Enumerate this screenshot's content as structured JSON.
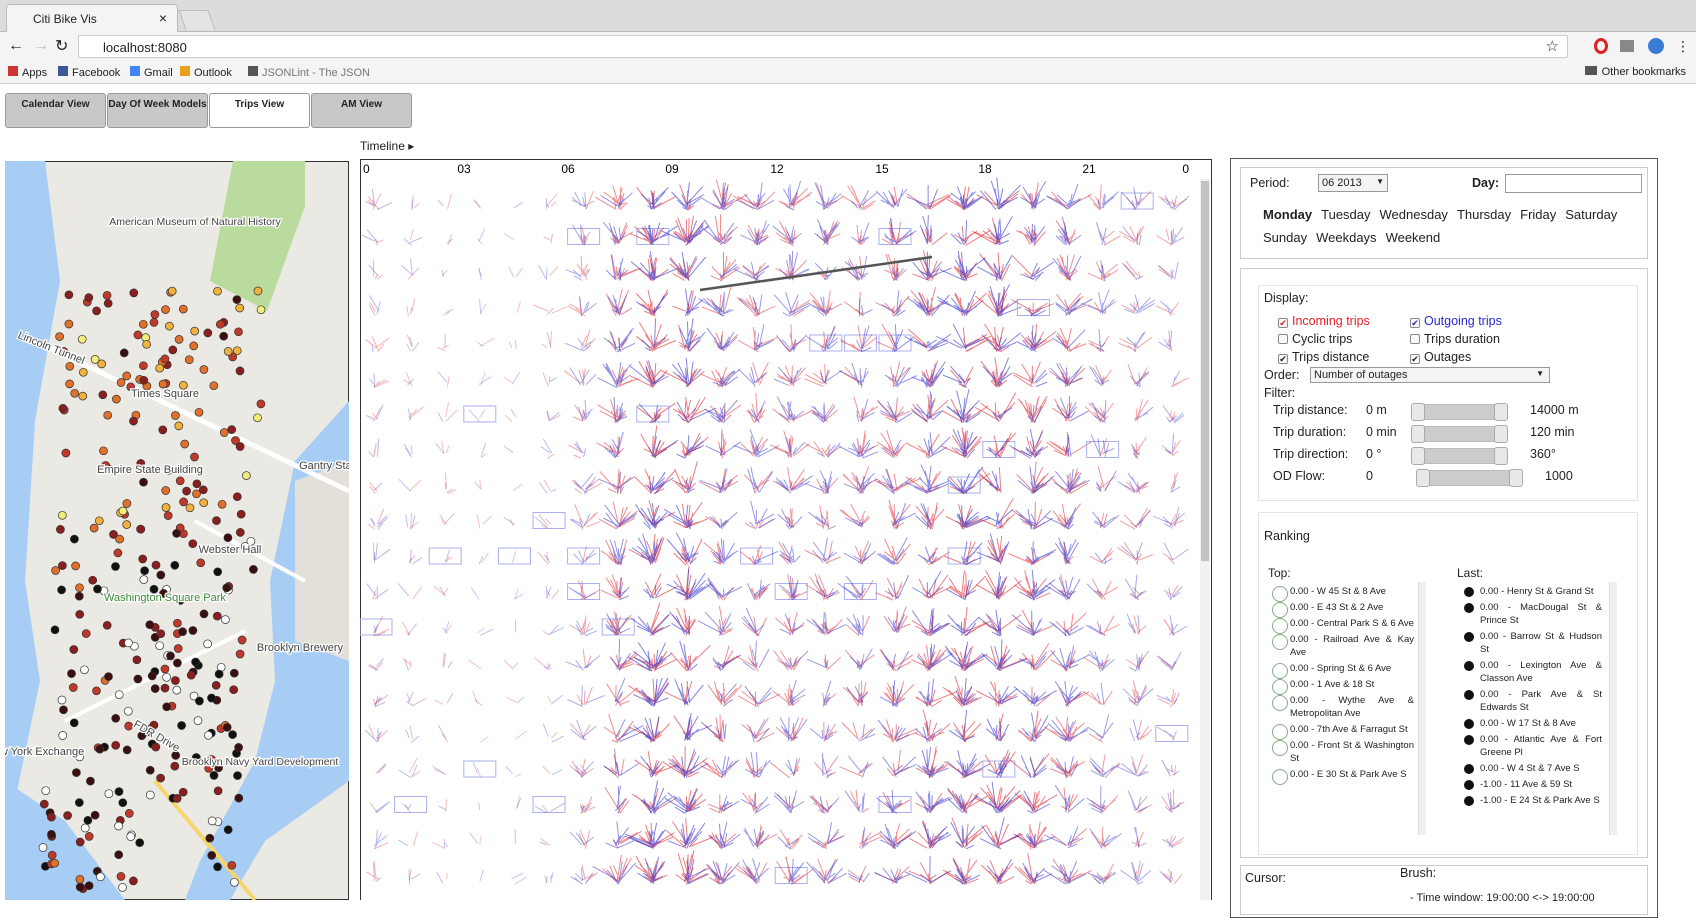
{
  "browser": {
    "tab_title": "Citi Bike Vis",
    "url": "localhost:8080",
    "bookmarks": [
      "Apps",
      "Facebook",
      "Gmail",
      "Outlook",
      "JSONLint - The JSON"
    ],
    "other_bookmarks": "Other bookmarks"
  },
  "tabs": [
    "Calendar View",
    "Day Of Week Models",
    "Trips View",
    "AM View"
  ],
  "map": {
    "labels": [
      "American Museum of Natural History",
      "Lincoln Tunnel",
      "Times Square",
      "Empire State Building",
      "Gantry State",
      "Webster Hall",
      "Washington Square Park",
      "Brooklyn Brewery",
      "FDR Drive",
      "New York Exchange",
      "Brooklyn Navy Yard Development"
    ]
  },
  "timeline": {
    "label": "Timeline ▸",
    "hours": [
      "0",
      "03",
      "06",
      "09",
      "12",
      "15",
      "18",
      "21",
      "0"
    ]
  },
  "panel": {
    "period_label": "Period:",
    "period_value": "06 2013",
    "day_label": "Day:",
    "days": [
      "Monday",
      "Tuesday",
      "Wednesday",
      "Thursday",
      "Friday",
      "Saturday",
      "Sunday",
      "Weekdays",
      "Weekend"
    ],
    "display_label": "Display:",
    "display_options": [
      {
        "label": "Incoming trips",
        "checked": true,
        "color": "#e8202a"
      },
      {
        "label": "Outgoing trips",
        "checked": true,
        "color": "#2a2ad0"
      },
      {
        "label": "Cyclic trips",
        "checked": false,
        "color": "#222222"
      },
      {
        "label": "Trips duration",
        "checked": false,
        "color": "#222222"
      },
      {
        "label": "Trips distance",
        "checked": true,
        "color": "#222222"
      },
      {
        "label": "Outages",
        "checked": true,
        "color": "#222222"
      }
    ],
    "order_label": "Order:",
    "order_value": "Number of outages",
    "filter_label": "Filter:",
    "filters": [
      {
        "label": "Trip distance:",
        "min": "0 m",
        "max": "14000 m"
      },
      {
        "label": "Trip duration:",
        "min": "0 min",
        "max": "120 min"
      },
      {
        "label": "Trip direction:",
        "min": "0 °",
        "max": "360°"
      },
      {
        "label": "OD Flow:",
        "min": "0",
        "max": "1000"
      }
    ],
    "ranking_title": "Ranking",
    "top_label": "Top:",
    "last_label": "Last:",
    "top": [
      "0.00 - W 45 St & 8 Ave",
      "0.00 - E 43 St & 2 Ave",
      "0.00 - Central Park S & 6 Ave",
      "0.00 - Railroad Ave & Kay Ave",
      "0.00 - Spring St & 6 Ave",
      "0.00 - 1 Ave & 18 St",
      "0.00 - Wythe Ave & Metropolitan Ave",
      "0.00 - 7th Ave & Farragut St",
      "0.00 - Front St & Washington St",
      "0.00 - E 30 St & Park Ave S"
    ],
    "last": [
      "0.00 - Henry St & Grand St",
      "0.00 - MacDougal St & Prince St",
      "0.00 - Barrow St & Hudson St",
      "0.00 - Lexington Ave & Classon Ave",
      "0.00 - Park Ave & St Edwards St",
      "0.00 - W 17 St & 8 Ave",
      "0.00 - Atlantic Ave & Fort Greene Pl",
      "0.00 - W 4 St & 7 Ave S",
      "-1.00 - 11 Ave & 59 St",
      "-1.00 - E 24 St & Park Ave S"
    ],
    "cursor_label": "Cursor:",
    "brush_label": "Brush:",
    "brush_text": "- Time window: 19:00:00 <-> 19:00:00"
  }
}
